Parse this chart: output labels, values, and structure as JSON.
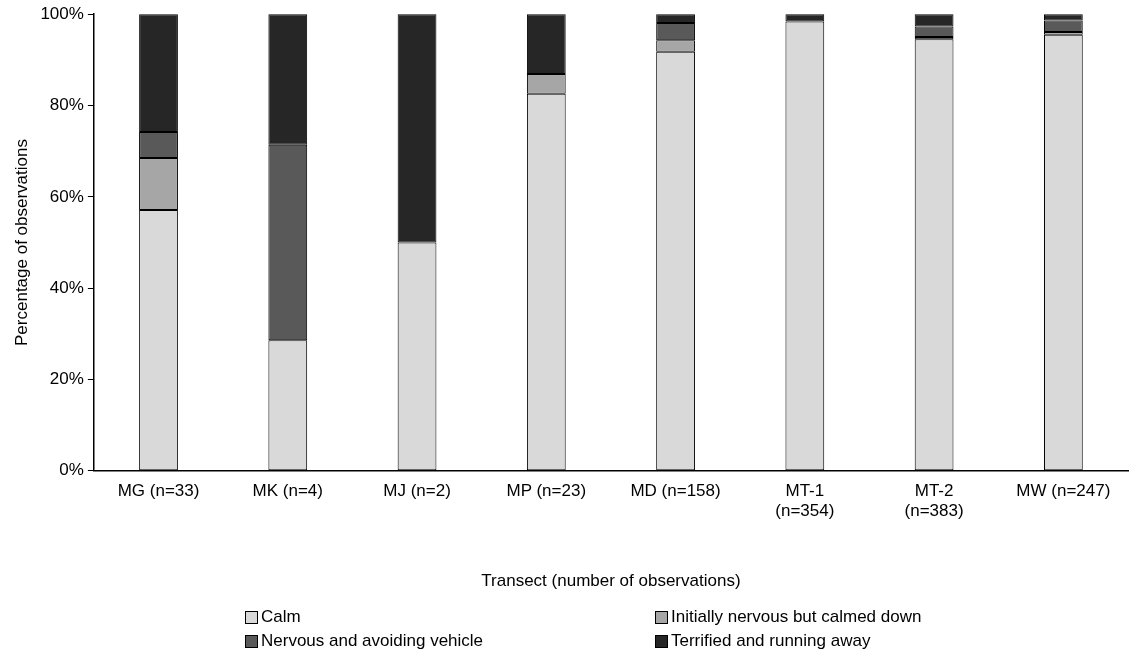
{
  "chart_data": {
    "type": "bar",
    "stacked": true,
    "xlabel": "Transect (number of observations)",
    "ylabel": "Percentage of observations",
    "categories": [
      "MG (n=33)",
      "MK (n=4)",
      "MJ (n=2)",
      "MP (n=23)",
      "MD (n=158)",
      "MT-1 (n=354)",
      "MT-2 (n=383)",
      "MW (n=247)"
    ],
    "series": [
      {
        "name": "Calm",
        "color": "#d9d9d9",
        "values": [
          57.1,
          28.6,
          50,
          82.6,
          91.8,
          98.4,
          94.5,
          95.5
        ]
      },
      {
        "name": "Initially nervous but calmed down",
        "color": "#a6a6a6",
        "values": [
          11.4,
          0,
          0,
          4.3,
          2.5,
          0,
          0.5,
          0.6
        ]
      },
      {
        "name": "Nervous and avoiding vehicle",
        "color": "#595959",
        "values": [
          5.7,
          42.8,
          0,
          0,
          3.8,
          0,
          2.3,
          2.5
        ]
      },
      {
        "name": "Terrified and running away",
        "color": "#262626",
        "values": [
          25.8,
          28.6,
          50,
          13.1,
          1.9,
          1.6,
          2.7,
          1.4
        ]
      }
    ],
    "ylim": [
      0,
      100
    ],
    "yticks": [
      {
        "value": 0,
        "label": "0%"
      },
      {
        "value": 20,
        "label": "20%"
      },
      {
        "value": 40,
        "label": "40%"
      },
      {
        "value": 60,
        "label": "60%"
      },
      {
        "value": 80,
        "label": "80%"
      },
      {
        "value": 100,
        "label": "100%"
      }
    ],
    "grid": false,
    "legend": "bottom"
  }
}
